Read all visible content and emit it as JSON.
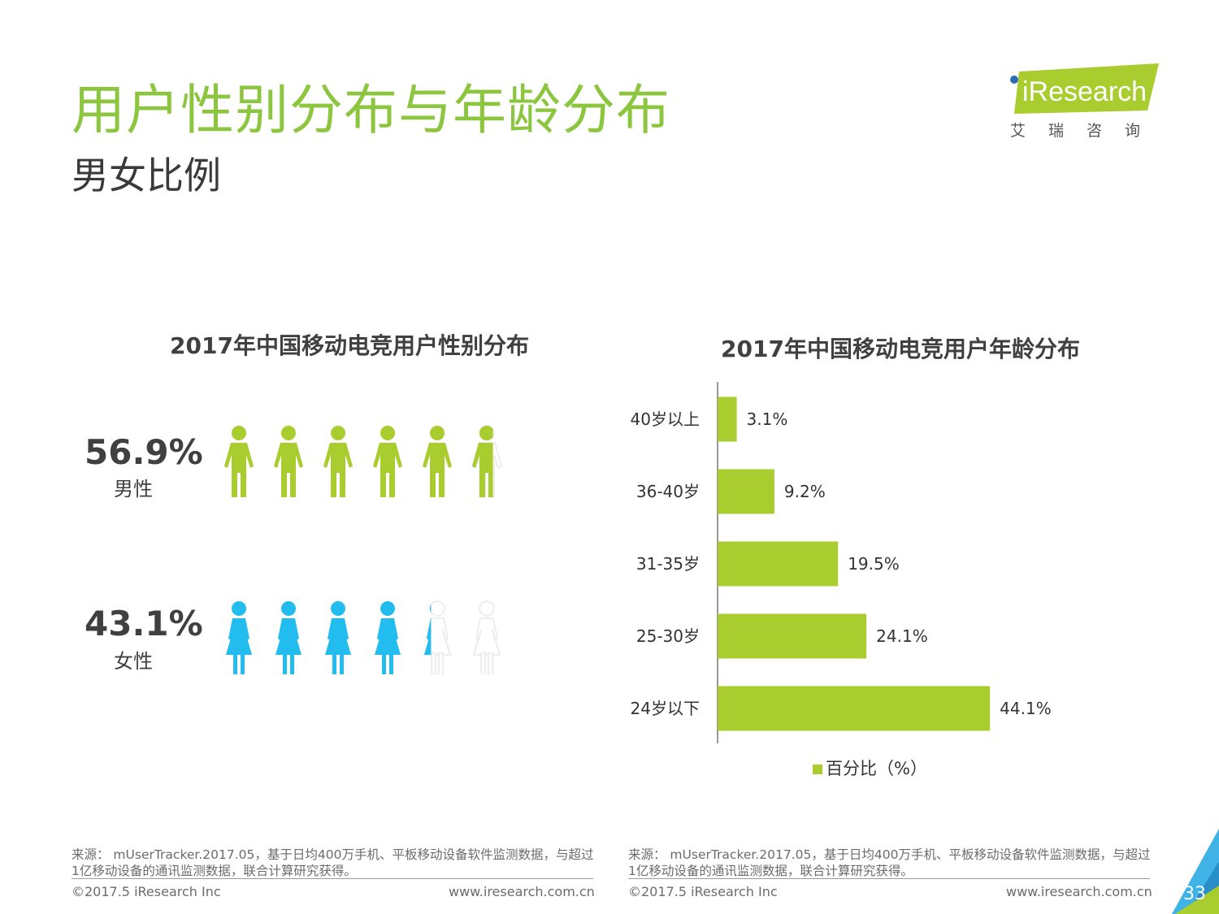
{
  "header": {
    "title": "用户性别分布与年龄分布",
    "subtitle": "男女比例",
    "logo_text": "iResearch",
    "logo_cn": "艾瑞咨询"
  },
  "gender_chart": {
    "title": "2017年中国移动电竞用户性别分布",
    "male": {
      "pct": "56.9%",
      "label": "男性",
      "color": "#a9cc2f",
      "value": 56.9,
      "icon": "male-person-icon"
    },
    "female": {
      "pct": "43.1%",
      "label": "女性",
      "color": "#22bcee",
      "value": 43.1,
      "icon": "female-person-icon"
    },
    "empty_color": "#e9e9e9"
  },
  "chart_data": {
    "type": "bar",
    "orientation": "horizontal",
    "title": "2017年中国移动电竞用户年龄分布",
    "categories": [
      "40岁以上",
      "36-40岁",
      "31-35岁",
      "25-30岁",
      "24岁以下"
    ],
    "series": [
      {
        "name": "百分比（%）",
        "values": [
          3.1,
          9.2,
          19.5,
          24.1,
          44.1
        ],
        "color": "#a9cc2f"
      }
    ],
    "data_labels": [
      "3.1%",
      "9.2%",
      "19.5%",
      "24.1%",
      "44.1%"
    ],
    "xlim": [
      0,
      50
    ],
    "grid": false,
    "legend": "bottom"
  },
  "footer": {
    "left_source": "来源： mUserTracker.2017.05，基于日均400万手机、平板移动设备软件监测数据，与超过1亿移动设备的通讯监测数据，联合计算研究获得。",
    "right_source": "来源： mUserTracker.2017.05，基于日均400万手机、平板移动设备软件监测数据，与超过1亿移动设备的通讯监测数据，联合计算研究获得。",
    "copyright_left": "©2017.5 iResearch Inc",
    "url_left": "www.iresearch.com.cn",
    "copyright_right": "©2017.5 iResearch Inc",
    "url_right": "www.iresearch.com.cn",
    "page_number": "33"
  }
}
